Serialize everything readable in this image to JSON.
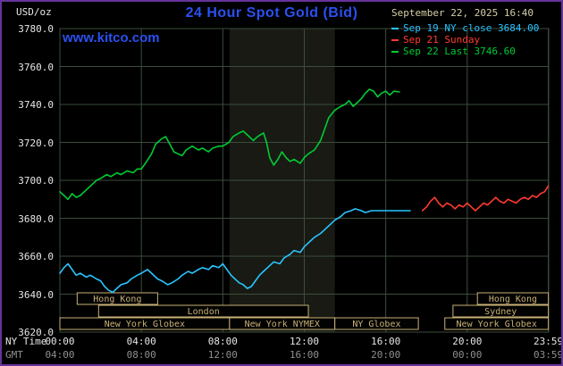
{
  "header": {
    "units": "USD/oz",
    "title": "24 Hour Spot Gold (Bid)",
    "datetime": "September 22, 2025 16:40",
    "watermark": "www.kitco.com"
  },
  "axes": {
    "ny_time_label": "NY Time",
    "gmt_label": "GMT",
    "y_ticks": [
      "3780.0",
      "3760.0",
      "3740.0",
      "3720.0",
      "3700.0",
      "3680.0",
      "3660.0",
      "3640.0",
      "3620.0"
    ],
    "x_ticks": [
      {
        "hour": 0,
        "ny": "00:00",
        "gmt": "04:00"
      },
      {
        "hour": 4,
        "ny": "04:00",
        "gmt": "08:00"
      },
      {
        "hour": 8,
        "ny": "08:00",
        "gmt": "12:00"
      },
      {
        "hour": 12,
        "ny": "12:00",
        "gmt": "16:00"
      },
      {
        "hour": 16,
        "ny": "16:00",
        "gmt": "20:00"
      },
      {
        "hour": 20,
        "ny": "20:00",
        "gmt": "00:00"
      },
      {
        "hour": 23.983,
        "ny": "23:59",
        "gmt": "03:59"
      }
    ]
  },
  "legend": [
    {
      "id": "sep19",
      "label": "Sep 19 NY close 3684.00",
      "color": "#29c4ff"
    },
    {
      "id": "sep21",
      "label": "Sep 21 Sunday",
      "color": "#ff3b30"
    },
    {
      "id": "sep22",
      "label": "Sep 22 Last 3746.60",
      "color": "#00cc33"
    }
  ],
  "sessions": [
    {
      "row": 0,
      "label": "Hong Kong",
      "start": 0.85,
      "end": 4.8
    },
    {
      "row": 0,
      "label": "Hong Kong",
      "start": 20.5,
      "end": 23.983
    },
    {
      "row": 1,
      "label": "London",
      "start": 1.9,
      "end": 12.2
    },
    {
      "row": 1,
      "label": "Sydney",
      "start": 19.3,
      "end": 23.983
    },
    {
      "row": 2,
      "label": "New York Globex",
      "start": 0,
      "end": 8.33
    },
    {
      "row": 2,
      "label": "New York NYMEX",
      "start": 8.33,
      "end": 13.5
    },
    {
      "row": 2,
      "label": "NY Globex",
      "start": 13.5,
      "end": 17.6
    },
    {
      "row": 2,
      "label": "New York Globex",
      "start": 18.9,
      "end": 23.983
    }
  ],
  "colors": {
    "background": "#000000",
    "frame_border": "#663399",
    "title": "#2b50f0",
    "watermark": "#2b50f0",
    "datetime": "#d6cfa8",
    "grid": "#3d4d3d",
    "axis_text": "#e6e6e6",
    "gmt_text": "#8f8f8f",
    "session": "#c9b176",
    "band": "rgba(85,95,70,0.28)"
  },
  "chart_data": {
    "type": "line",
    "title": "24 Hour Spot Gold (Bid)",
    "ylabel": "USD/oz",
    "xlabel": "NY Time (hours)",
    "ylim": [
      3620,
      3780
    ],
    "xlim": [
      0,
      24
    ],
    "grid": true,
    "legend_position": "top-right",
    "band_hours": [
      8.33,
      13.5
    ],
    "series": [
      {
        "id": "sep19",
        "name": "Sep 19 NY close 3684.00",
        "color": "#29c4ff",
        "points": [
          [
            0,
            3651
          ],
          [
            0.2,
            3654
          ],
          [
            0.4,
            3656
          ],
          [
            0.6,
            3653
          ],
          [
            0.8,
            3650
          ],
          [
            1,
            3651
          ],
          [
            1.3,
            3649
          ],
          [
            1.5,
            3650
          ],
          [
            1.8,
            3648
          ],
          [
            2,
            3647
          ],
          [
            2.2,
            3644
          ],
          [
            2.4,
            3642
          ],
          [
            2.6,
            3641
          ],
          [
            2.8,
            3643
          ],
          [
            3,
            3645
          ],
          [
            3.3,
            3646
          ],
          [
            3.5,
            3648
          ],
          [
            3.8,
            3650
          ],
          [
            4,
            3651
          ],
          [
            4.3,
            3653
          ],
          [
            4.5,
            3651
          ],
          [
            4.8,
            3648
          ],
          [
            5,
            3647
          ],
          [
            5.3,
            3645
          ],
          [
            5.5,
            3646
          ],
          [
            5.8,
            3648
          ],
          [
            6,
            3650
          ],
          [
            6.3,
            3652
          ],
          [
            6.5,
            3651
          ],
          [
            6.8,
            3653
          ],
          [
            7,
            3654
          ],
          [
            7.3,
            3653
          ],
          [
            7.5,
            3655
          ],
          [
            7.8,
            3654
          ],
          [
            8,
            3656
          ],
          [
            8.2,
            3653
          ],
          [
            8.4,
            3650
          ],
          [
            8.6,
            3648
          ],
          [
            8.8,
            3646
          ],
          [
            9,
            3645
          ],
          [
            9.2,
            3643
          ],
          [
            9.4,
            3644
          ],
          [
            9.6,
            3647
          ],
          [
            9.8,
            3650
          ],
          [
            10,
            3652
          ],
          [
            10.3,
            3655
          ],
          [
            10.5,
            3657
          ],
          [
            10.8,
            3656
          ],
          [
            11,
            3659
          ],
          [
            11.3,
            3661
          ],
          [
            11.5,
            3663
          ],
          [
            11.8,
            3662
          ],
          [
            12,
            3665
          ],
          [
            12.3,
            3668
          ],
          [
            12.5,
            3670
          ],
          [
            12.8,
            3672
          ],
          [
            13,
            3674
          ],
          [
            13.3,
            3677
          ],
          [
            13.5,
            3679
          ],
          [
            13.8,
            3681
          ],
          [
            14,
            3683
          ],
          [
            14.3,
            3684
          ],
          [
            14.5,
            3685
          ],
          [
            14.8,
            3684
          ],
          [
            15,
            3683
          ],
          [
            15.3,
            3684
          ],
          [
            15.6,
            3684
          ],
          [
            16,
            3684
          ],
          [
            16.4,
            3684
          ],
          [
            16.8,
            3684
          ],
          [
            17.2,
            3684
          ]
        ]
      },
      {
        "id": "sep21",
        "name": "Sep 21 Sunday",
        "color": "#ff3b30",
        "points": [
          [
            17.8,
            3684
          ],
          [
            18,
            3686
          ],
          [
            18.2,
            3689
          ],
          [
            18.4,
            3691
          ],
          [
            18.6,
            3688
          ],
          [
            18.8,
            3686
          ],
          [
            19,
            3688
          ],
          [
            19.2,
            3687
          ],
          [
            19.4,
            3685
          ],
          [
            19.6,
            3687
          ],
          [
            19.8,
            3686
          ],
          [
            20,
            3688
          ],
          [
            20.2,
            3686
          ],
          [
            20.4,
            3684
          ],
          [
            20.6,
            3686
          ],
          [
            20.8,
            3688
          ],
          [
            21,
            3687
          ],
          [
            21.2,
            3689
          ],
          [
            21.4,
            3691
          ],
          [
            21.6,
            3689
          ],
          [
            21.8,
            3688
          ],
          [
            22,
            3690
          ],
          [
            22.2,
            3689
          ],
          [
            22.4,
            3688
          ],
          [
            22.6,
            3690
          ],
          [
            22.8,
            3691
          ],
          [
            23,
            3690
          ],
          [
            23.2,
            3692
          ],
          [
            23.4,
            3691
          ],
          [
            23.6,
            3693
          ],
          [
            23.8,
            3694
          ],
          [
            23.98,
            3697
          ]
        ]
      },
      {
        "id": "sep22",
        "name": "Sep 22 Last 3746.60",
        "color": "#00cc33",
        "points": [
          [
            0,
            3694
          ],
          [
            0.2,
            3692
          ],
          [
            0.4,
            3690
          ],
          [
            0.6,
            3693
          ],
          [
            0.8,
            3691
          ],
          [
            1,
            3692
          ],
          [
            1.2,
            3694
          ],
          [
            1.5,
            3697
          ],
          [
            1.8,
            3700
          ],
          [
            2,
            3701
          ],
          [
            2.3,
            3703
          ],
          [
            2.5,
            3702
          ],
          [
            2.8,
            3704
          ],
          [
            3,
            3703
          ],
          [
            3.3,
            3705
          ],
          [
            3.6,
            3704
          ],
          [
            3.8,
            3706
          ],
          [
            4,
            3706
          ],
          [
            4.2,
            3709
          ],
          [
            4.5,
            3714
          ],
          [
            4.7,
            3719
          ],
          [
            5,
            3722
          ],
          [
            5.2,
            3723
          ],
          [
            5.4,
            3719
          ],
          [
            5.6,
            3715
          ],
          [
            5.8,
            3714
          ],
          [
            6,
            3713
          ],
          [
            6.2,
            3716
          ],
          [
            6.5,
            3718
          ],
          [
            6.8,
            3716
          ],
          [
            7,
            3717
          ],
          [
            7.3,
            3715
          ],
          [
            7.5,
            3717
          ],
          [
            7.8,
            3718
          ],
          [
            8,
            3718
          ],
          [
            8.3,
            3720
          ],
          [
            8.5,
            3723
          ],
          [
            8.8,
            3725
          ],
          [
            9,
            3726
          ],
          [
            9.2,
            3724
          ],
          [
            9.5,
            3721
          ],
          [
            9.7,
            3723
          ],
          [
            10,
            3725
          ],
          [
            10.15,
            3720
          ],
          [
            10.3,
            3712
          ],
          [
            10.5,
            3708
          ],
          [
            10.7,
            3711
          ],
          [
            10.9,
            3715
          ],
          [
            11.1,
            3712
          ],
          [
            11.3,
            3710
          ],
          [
            11.5,
            3711
          ],
          [
            11.8,
            3709
          ],
          [
            12,
            3712
          ],
          [
            12.2,
            3714
          ],
          [
            12.5,
            3716
          ],
          [
            12.8,
            3721
          ],
          [
            13,
            3727
          ],
          [
            13.2,
            3733
          ],
          [
            13.5,
            3737
          ],
          [
            13.8,
            3739
          ],
          [
            14,
            3740
          ],
          [
            14.2,
            3742
          ],
          [
            14.4,
            3739
          ],
          [
            14.6,
            3741
          ],
          [
            14.8,
            3743
          ],
          [
            15,
            3746
          ],
          [
            15.2,
            3748
          ],
          [
            15.4,
            3747
          ],
          [
            15.6,
            3744
          ],
          [
            15.8,
            3746
          ],
          [
            16,
            3747
          ],
          [
            16.2,
            3745
          ],
          [
            16.4,
            3747
          ],
          [
            16.67,
            3746.6
          ]
        ]
      }
    ]
  }
}
